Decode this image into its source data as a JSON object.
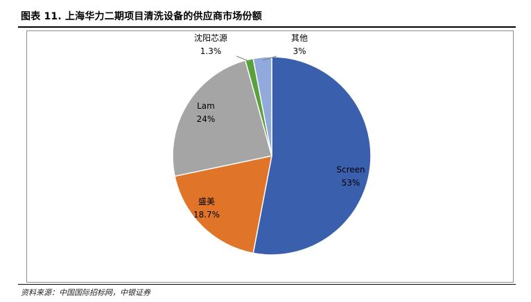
{
  "header": {
    "title": "图表 11. 上海华力二期项目清洗设备的供应商市场份额"
  },
  "footer": {
    "source": "资料来源：中国国际招标网，中银证券"
  },
  "chart_data": {
    "type": "pie",
    "title": "",
    "start_angle_deg": 0,
    "direction": "clockwise",
    "legend": "none",
    "slices": [
      {
        "name": "Screen",
        "value": 53,
        "label": "53%",
        "color": "#3a5fad"
      },
      {
        "name": "盛美",
        "value": 18.7,
        "label": "18.7%",
        "color": "#e07428"
      },
      {
        "name": "Lam",
        "value": 24,
        "label": "24%",
        "color": "#a5a5a5"
      },
      {
        "name": "沈阳芯源",
        "value": 1.3,
        "label": "1.3%",
        "color": "#5aa03c"
      },
      {
        "name": "其他",
        "value": 3,
        "label": "3%",
        "color": "#92a9dc"
      }
    ]
  }
}
